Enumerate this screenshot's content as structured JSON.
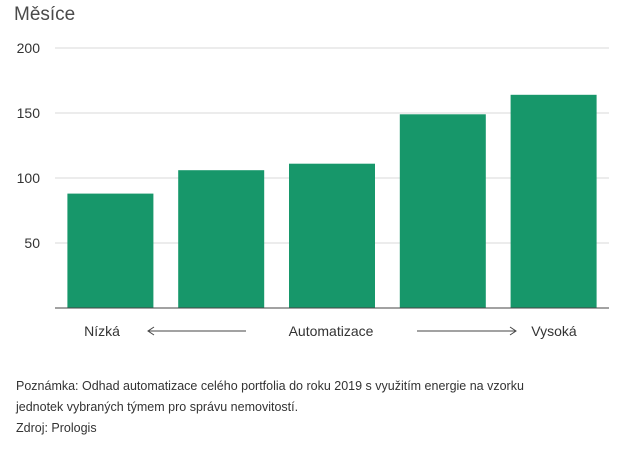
{
  "chart_data": {
    "type": "bar",
    "title": "",
    "ylabel": "Měsíce",
    "xlabel": "Automatizace",
    "x_axis_low_label": "Nízká",
    "x_axis_high_label": "Vysoká",
    "ylim": [
      0,
      200
    ],
    "yticks": [
      50,
      100,
      150,
      200
    ],
    "values": [
      88,
      106,
      111,
      149,
      164
    ],
    "bar_color": "#17976a",
    "grid": true,
    "legend": "none"
  },
  "footnote": {
    "line1": "Poznámka: Odhad automatizace celého portfolia do roku 2019 s využitím energie na vzorku",
    "line2": "jednotek vybraných týmem pro správu nemovitostí.",
    "source": "Zdroj: Prologis"
  }
}
